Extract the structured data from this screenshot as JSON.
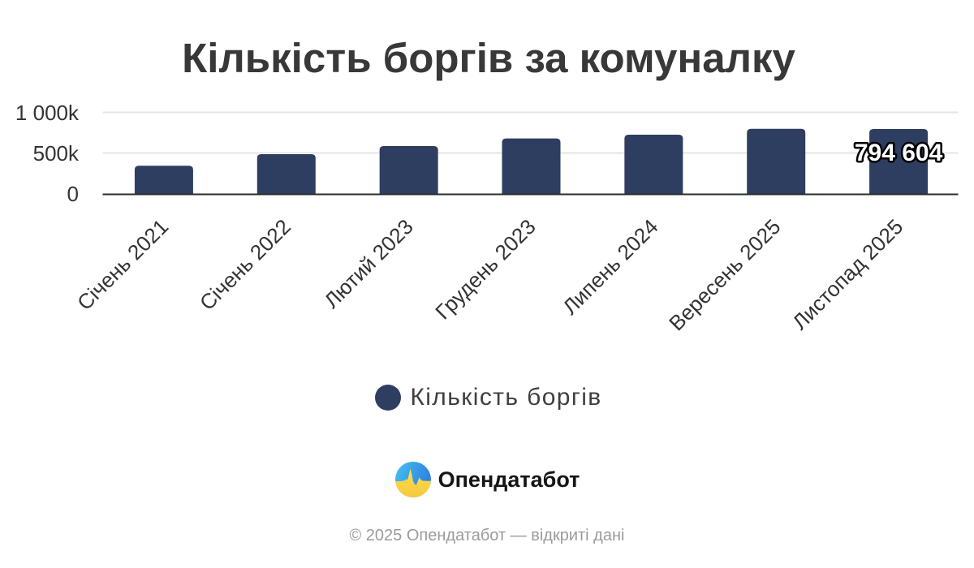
{
  "chart_data": {
    "type": "bar",
    "title": "Кількість боргів за комуналку",
    "categories": [
      "Січень 2021",
      "Січень 2022",
      "Лютий 2023",
      "Грудень 2023",
      "Липень 2024",
      "Вересень 2025",
      "Листопад 2025"
    ],
    "series": [
      {
        "name": "Кількість боргів",
        "values": [
          342000,
          485000,
          585000,
          679000,
          725000,
          797000,
          794604
        ]
      }
    ],
    "ylim": [
      0,
      1000000
    ],
    "yticks": [
      {
        "value": 0,
        "label": "0"
      },
      {
        "value": 500000,
        "label": "500k"
      },
      {
        "value": 1000000,
        "label": "1 000k"
      }
    ],
    "grid": true,
    "legend_position": "bottom",
    "last_point_label": "794 604",
    "bar_color": "#2e3e60",
    "grid_color": "#e6e6e6",
    "axis_line_color": "#2b2b2b",
    "label_color": "#333333"
  },
  "legend": {
    "label": "Кількість боргів",
    "marker_color": "#2e3e60"
  },
  "brand": {
    "name": "Опендатабот",
    "logo_icon": "opendatabot-pulse-circle",
    "logo_blue": "#38a8e8",
    "logo_yellow": "#ffd43d"
  },
  "footer": {
    "text": "© 2025 Опендатабот — відкриті дані"
  }
}
